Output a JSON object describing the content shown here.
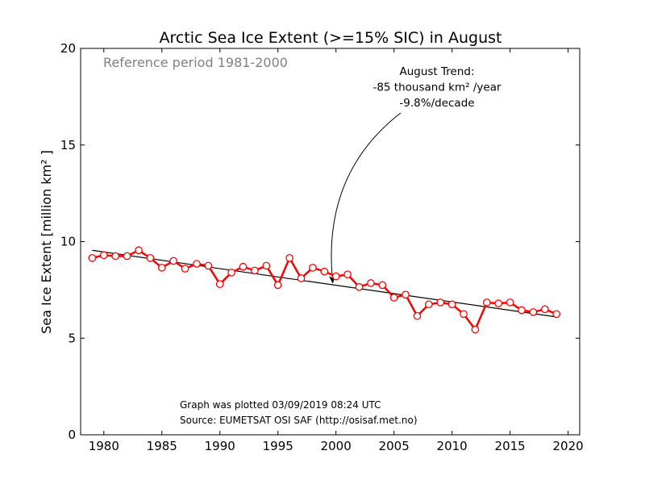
{
  "chart_data": {
    "type": "line",
    "title": "Arctic Sea Ice Extent (>=15% SIC) in August",
    "ylabel": "Sea Ice Extent [million km² ]",
    "xlabel": "",
    "xlim": [
      1978,
      2021
    ],
    "ylim": [
      0,
      20
    ],
    "xticks": [
      1980,
      1985,
      1990,
      1995,
      2000,
      2005,
      2010,
      2015,
      2020
    ],
    "yticks": [
      0,
      5,
      10,
      15,
      20
    ],
    "grid": false,
    "x": [
      1979,
      1980,
      1981,
      1982,
      1983,
      1984,
      1985,
      1986,
      1987,
      1988,
      1989,
      1990,
      1991,
      1992,
      1993,
      1994,
      1995,
      1996,
      1997,
      1998,
      1999,
      2000,
      2001,
      2002,
      2003,
      2004,
      2005,
      2006,
      2007,
      2008,
      2009,
      2010,
      2011,
      2012,
      2013,
      2014,
      2015,
      2016,
      2017,
      2018,
      2019
    ],
    "series": [
      {
        "color": "#ff0000",
        "marker": "open-circle",
        "values": [
          9.15,
          9.3,
          9.25,
          9.25,
          9.55,
          9.15,
          8.65,
          9.0,
          8.6,
          8.85,
          8.75,
          7.8,
          8.4,
          8.7,
          8.5,
          8.75,
          7.75,
          9.15,
          8.1,
          8.65,
          8.45,
          8.2,
          8.3,
          7.65,
          7.85,
          7.75,
          7.1,
          7.25,
          6.15,
          6.75,
          6.85,
          6.75,
          6.25,
          5.45,
          6.85,
          6.8,
          6.85,
          6.45,
          6.35,
          6.5,
          6.25
        ]
      }
    ],
    "trend": {
      "color": "#000000",
      "x_start": 1979,
      "y_start": 9.55,
      "x_end": 2019,
      "y_end": 6.1
    },
    "reference_text": "Reference period 1981-2000",
    "annotation": {
      "lines": [
        "August Trend:",
        "-85 thousand km² /year",
        "-9.8%/decade"
      ],
      "arrow_target_x": 1999.7,
      "arrow_target_y": 7.9
    },
    "notes": [
      "Graph was plotted 03/09/2019 08:24 UTC",
      "Source: EUMETSAT OSI SAF (http://osisaf.met.no)"
    ]
  }
}
